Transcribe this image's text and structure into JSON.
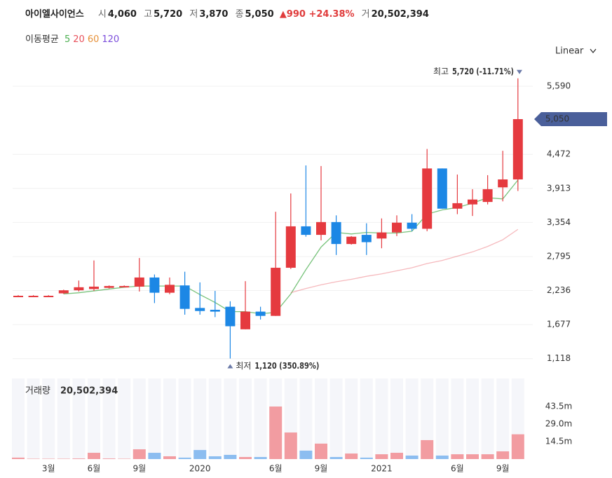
{
  "header": {
    "name": "아이엘사이언스",
    "items": [
      {
        "label": "시",
        "value": "4,060"
      },
      {
        "label": "고",
        "value": "5,720"
      },
      {
        "label": "저",
        "value": "3,870"
      },
      {
        "label": "종",
        "value": "5,050"
      }
    ],
    "change": "▲990 +24.38%",
    "volume_item": {
      "label": "거",
      "value": "20,502,394"
    }
  },
  "moving_average_title": "이동평균",
  "scale_button": "Linear",
  "chart_data": {
    "type": "candlestick",
    "categories": [
      null,
      null,
      "3월",
      null,
      null,
      "6월",
      null,
      null,
      "9월",
      null,
      null,
      null,
      "2020",
      null,
      null,
      null,
      null,
      "6월",
      null,
      null,
      "9월",
      null,
      null,
      null,
      "2021",
      null,
      null,
      null,
      null,
      "6월",
      null,
      null,
      "9월",
      null
    ],
    "open": [
      2150,
      2150,
      2150,
      2190,
      2240,
      2260,
      2280,
      2300,
      2300,
      2450,
      2200,
      2320,
      1950,
      1920,
      1970,
      1600,
      1890,
      1820,
      2610,
      3290,
      3150,
      3360,
      3000,
      3150,
      3090,
      3190,
      3350,
      3250,
      4240,
      3580,
      3650,
      3690,
      3930,
      4060
    ],
    "high": [
      2160,
      2160,
      2160,
      2250,
      2400,
      2730,
      2320,
      2320,
      2770,
      2500,
      2450,
      2545,
      2370,
      2230,
      2060,
      2390,
      1970,
      3530,
      3830,
      4290,
      4280,
      3470,
      3130,
      3340,
      3420,
      3470,
      3490,
      4560,
      4240,
      4140,
      3900,
      4130,
      4530,
      5720
    ],
    "low": [
      2140,
      2140,
      2140,
      2180,
      2220,
      2230,
      2270,
      2290,
      2220,
      2030,
      2175,
      1840,
      1840,
      1800,
      1120,
      1600,
      1760,
      1820,
      2590,
      3120,
      3060,
      2820,
      2990,
      2820,
      2930,
      3130,
      3210,
      3210,
      3580,
      3490,
      3460,
      3650,
      3700,
      3870
    ],
    "close": [
      2150,
      2150,
      2150,
      2240,
      2290,
      2300,
      2310,
      2310,
      2450,
      2200,
      2330,
      1935,
      1900,
      1890,
      1650,
      1890,
      1820,
      2610,
      3290,
      3150,
      3360,
      3000,
      3120,
      3030,
      3190,
      3350,
      3250,
      4240,
      3580,
      3670,
      3730,
      3900,
      4060,
      5050
    ],
    "up_color": "#e53a3f",
    "down_color": "#1c87e5",
    "ylim": [
      850,
      5970
    ],
    "yticks": [
      {
        "value": 1118,
        "label": "1,118"
      },
      {
        "value": 1677,
        "label": "1,677"
      },
      {
        "value": 2236,
        "label": "2,236"
      },
      {
        "value": 2795,
        "label": "2,795"
      },
      {
        "value": 3354,
        "label": "3,354"
      },
      {
        "value": 3913,
        "label": "3,913"
      },
      {
        "value": 4472,
        "label": "4,472"
      },
      {
        "value": 5590,
        "label": "5,590"
      }
    ],
    "grid": true,
    "last_price_label": "5,050",
    "last_price_color": "#4a5f9a",
    "max_annotation": {
      "text": "최고",
      "value_label": "5,720 (-11.71%)",
      "color": "#6b7aa8"
    },
    "min_annotation": {
      "text": "최저",
      "value_label": "1,120 (350.89%)",
      "color": "#6b7aa8"
    },
    "moving_averages": [
      {
        "name": "5",
        "color": "#4caf50",
        "values": [
          null,
          null,
          null,
          2180,
          2200,
          2230,
          2260,
          2290,
          2310,
          2310,
          2310,
          2310,
          2170,
          2040,
          1890,
          1890,
          1855,
          1877,
          2180,
          2580,
          2950,
          3190,
          3165,
          3190,
          3180,
          3180,
          3210,
          3490,
          3560,
          3600,
          3670,
          3760,
          3740,
          4050
        ]
      },
      {
        "name": "20",
        "color": "#e8505b",
        "values": [
          null,
          null,
          null,
          null,
          null,
          null,
          null,
          null,
          null,
          null,
          null,
          null,
          null,
          null,
          null,
          null,
          null,
          null,
          2200,
          2270,
          2330,
          2380,
          2420,
          2470,
          2510,
          2560,
          2610,
          2680,
          2730,
          2800,
          2870,
          2960,
          3070,
          3240
        ]
      },
      {
        "name": "60",
        "color": "#e6913a",
        "values": [
          null,
          null,
          null,
          null,
          null,
          null,
          null,
          null,
          null,
          null,
          null,
          null,
          null,
          null,
          null,
          null,
          null,
          null,
          null,
          null,
          null,
          null,
          null,
          null,
          null,
          null,
          null,
          null,
          null,
          null,
          null,
          null,
          null,
          null
        ]
      },
      {
        "name": "120",
        "color": "#7b4ddb",
        "values": [
          null,
          null,
          null,
          null,
          null,
          null,
          null,
          null,
          null,
          null,
          null,
          null,
          null,
          null,
          null,
          null,
          null,
          null,
          null,
          null,
          null,
          null,
          null,
          null,
          null,
          null,
          null,
          null,
          null,
          null,
          null,
          null,
          null,
          null
        ]
      }
    ],
    "volume_title": "거래량",
    "volume_value_label": "20,502,394",
    "volume": [
      1200000,
      300000,
      300000,
      300000,
      500000,
      5200000,
      500000,
      300000,
      8100000,
      5200000,
      2300000,
      1200000,
      7500000,
      2300000,
      3500000,
      1700000,
      1700000,
      43500000,
      22000000,
      7000000,
      12800000,
      1700000,
      4600000,
      1200000,
      4000000,
      5200000,
      2900000,
      15700000,
      2900000,
      4000000,
      4000000,
      4000000,
      6400000,
      20502394
    ],
    "volume_up_color": "#f29ca1",
    "volume_down_color": "#8cbdf0",
    "volume_ylim": [
      0,
      66700000
    ],
    "volume_yticks": [
      {
        "value": 14500000,
        "label": "14.5m"
      },
      {
        "value": 29000000,
        "label": "29.0m"
      },
      {
        "value": 43500000,
        "label": "43.5m"
      }
    ]
  }
}
